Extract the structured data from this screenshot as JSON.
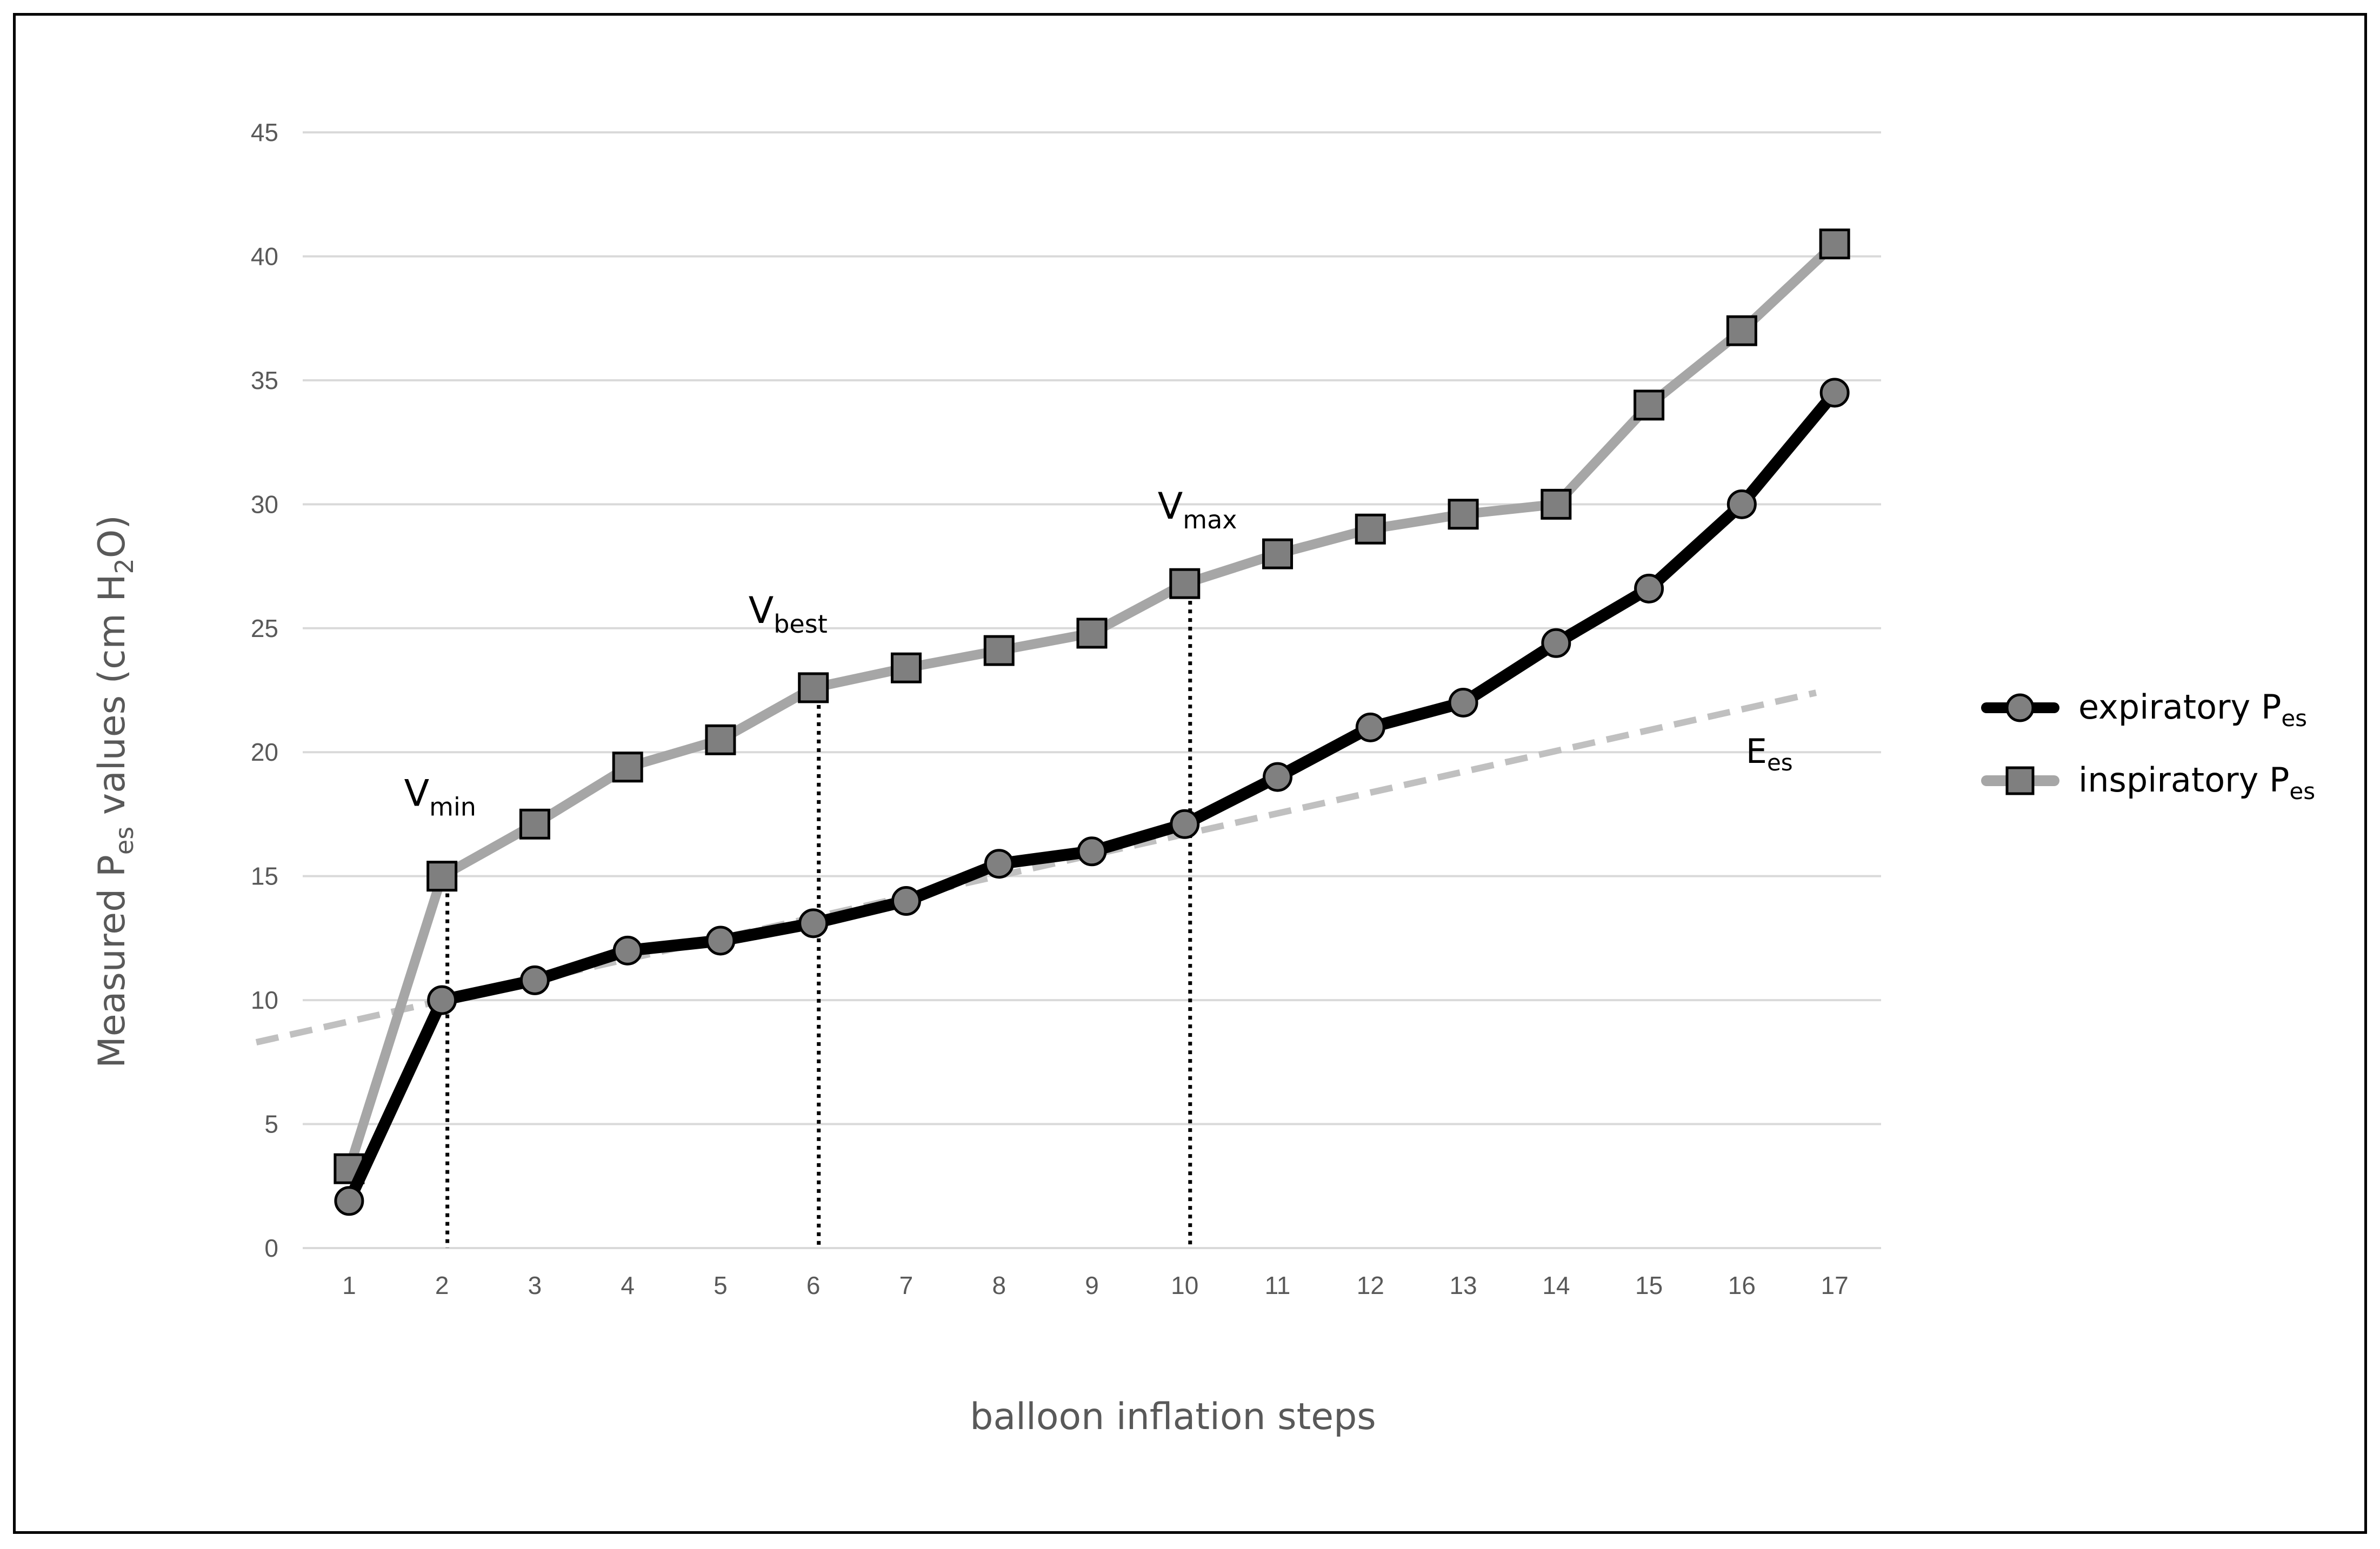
{
  "chart_data": {
    "type": "line",
    "xlabel": "balloon inflation steps",
    "ylabel": {
      "main": "Measured P",
      "sub": "es",
      "rest": " values (cm H",
      "sub2": "2",
      "end": "O)"
    },
    "ylim": [
      0,
      45
    ],
    "yticks": [
      0,
      5,
      10,
      15,
      20,
      25,
      30,
      35,
      40,
      45
    ],
    "categories": [
      "1",
      "2",
      "3",
      "4",
      "5",
      "6",
      "7",
      "8",
      "9",
      "10",
      "11",
      "12",
      "13",
      "14",
      "15",
      "16",
      "17"
    ],
    "grid": true,
    "legend_position": "right",
    "series": [
      {
        "name": "expiratory P",
        "name_sub": "es",
        "marker": "circle",
        "color": "#000000",
        "marker_color": "#808080",
        "values": [
          1.9,
          10.0,
          10.8,
          12.0,
          12.4,
          13.1,
          14.0,
          15.5,
          16.0,
          17.1,
          19.0,
          21.0,
          22.0,
          24.4,
          26.6,
          30.0,
          34.5
        ]
      },
      {
        "name": "inspiratory P",
        "name_sub": "es",
        "marker": "square",
        "color": "#a6a6a6",
        "marker_color": "#7f7f7f",
        "values": [
          3.2,
          15.0,
          17.1,
          19.4,
          20.5,
          22.6,
          23.4,
          24.1,
          24.8,
          26.8,
          28.0,
          29.0,
          29.6,
          30.0,
          34.0,
          37.0,
          40.5
        ]
      }
    ],
    "trendline": {
      "label": "E",
      "label_sub": "es",
      "color": "#c0c0c0",
      "from": {
        "x": 0.0,
        "y": 8.3
      },
      "to": {
        "x": 16.8,
        "y": 22.4
      }
    },
    "annotations": [
      {
        "main": "V",
        "sub": "min",
        "step": 2,
        "line_to": 15.0
      },
      {
        "main": "V",
        "sub": "best",
        "step": 6,
        "line_to": 22.6
      },
      {
        "main": "V",
        "sub": "max",
        "step": 10,
        "line_to": 26.8
      }
    ]
  }
}
